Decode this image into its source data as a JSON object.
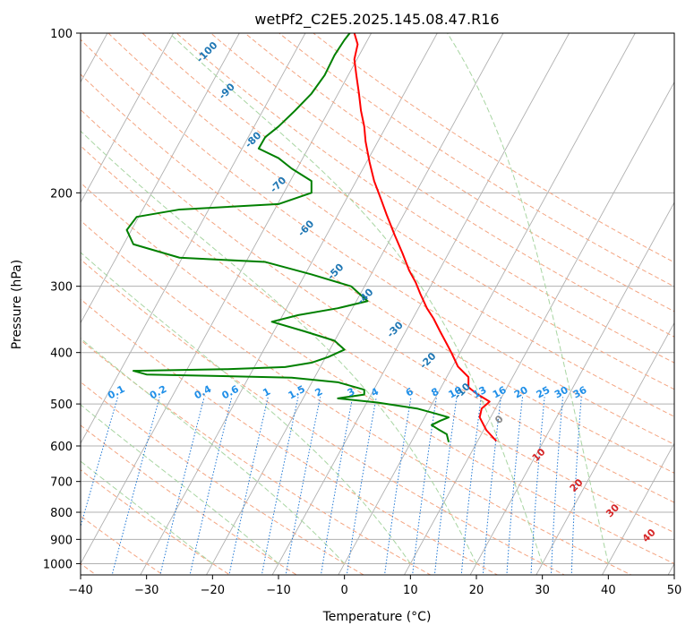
{
  "chart_data": {
    "type": "line",
    "title": "wetPf2_C2E5.2025.145.08.47.R16",
    "xlabel": "Temperature (°C)",
    "ylabel": "Pressure (hPa)",
    "xlim": [
      -40,
      50
    ],
    "ylim": [
      1050,
      100
    ],
    "y_scale": "log",
    "grid": true,
    "x_ticks": [
      -40,
      -30,
      -20,
      -10,
      0,
      10,
      20,
      30,
      40,
      50
    ],
    "x_tick_labels": [
      "−40",
      "−30",
      "−20",
      "−10",
      "0",
      "10",
      "20",
      "30",
      "40",
      "50"
    ],
    "y_ticks": [
      1000,
      900,
      800,
      700,
      600,
      500,
      400,
      300,
      200,
      100
    ],
    "y_tick_labels": [
      "1000",
      "900",
      "800",
      "700",
      "600",
      "500",
      "400",
      "300",
      "200",
      "100"
    ],
    "series": [
      {
        "color": "#ff0000",
        "points": [
          [
            23,
            587
          ],
          [
            21.5,
            560
          ],
          [
            20.5,
            530
          ],
          [
            20.8,
            510
          ],
          [
            22,
            495
          ],
          [
            20,
            478
          ],
          [
            18.8,
            465
          ],
          [
            18.8,
            445
          ],
          [
            17.2,
            425
          ],
          [
            16.2,
            400
          ],
          [
            15.5,
            385
          ],
          [
            14.5,
            365
          ],
          [
            13.5,
            345
          ],
          [
            12.5,
            330
          ],
          [
            11.5,
            310
          ],
          [
            10.8,
            295
          ],
          [
            9.8,
            280
          ],
          [
            8.8,
            260
          ],
          [
            7.6,
            240
          ],
          [
            6.4,
            220
          ],
          [
            5.5,
            205
          ],
          [
            4.5,
            190
          ],
          [
            3.8,
            175
          ],
          [
            3.2,
            160
          ],
          [
            3,
            150
          ],
          [
            2.5,
            140
          ],
          [
            2.2,
            130
          ],
          [
            1.8,
            120
          ],
          [
            1.5,
            112
          ],
          [
            2,
            105
          ],
          [
            1.5,
            100
          ]
        ]
      },
      {
        "color": "#008000",
        "points": [
          [
            15.8,
            590
          ],
          [
            15.5,
            570
          ],
          [
            14.2,
            558
          ],
          [
            13.2,
            548
          ],
          [
            14.5,
            538
          ],
          [
            15.8,
            530
          ],
          [
            13.5,
            520
          ],
          [
            11,
            510
          ],
          [
            5,
            497
          ],
          [
            -1,
            488
          ],
          [
            3,
            480
          ],
          [
            3,
            470
          ],
          [
            -1,
            455
          ],
          [
            -8,
            446
          ],
          [
            -30,
            440
          ],
          [
            -32,
            433
          ],
          [
            -18,
            430
          ],
          [
            -9,
            426
          ],
          [
            -5,
            418
          ],
          [
            -2.5,
            408
          ],
          [
            0,
            395
          ],
          [
            -1.5,
            380
          ],
          [
            -6,
            365
          ],
          [
            -11,
            350
          ],
          [
            -7,
            340
          ],
          [
            -1,
            330
          ],
          [
            3.5,
            320
          ],
          [
            1,
            300
          ],
          [
            -5,
            285
          ],
          [
            -12,
            270
          ],
          [
            -25,
            265
          ],
          [
            -32,
            250
          ],
          [
            -33,
            235
          ],
          [
            -31.5,
            222
          ],
          [
            -25,
            215
          ],
          [
            -10,
            210
          ],
          [
            -5,
            200
          ],
          [
            -5,
            190
          ],
          [
            -8,
            180
          ],
          [
            -10,
            172
          ],
          [
            -13,
            165
          ],
          [
            -12,
            157
          ],
          [
            -10,
            150
          ],
          [
            -7.5,
            140
          ],
          [
            -5,
            130
          ],
          [
            -3,
            120
          ],
          [
            -1.5,
            110
          ],
          [
            0,
            103
          ],
          [
            0.8,
            100
          ]
        ]
      }
    ],
    "dry_adiabats_K": [
      -70,
      -60,
      -50,
      -40,
      -30,
      -20,
      -10,
      0,
      10,
      20,
      30,
      40,
      50,
      60,
      70,
      80,
      90,
      100,
      110,
      120,
      130,
      140,
      150,
      160
    ],
    "moist_adiabats_C": [
      -20,
      -10,
      0,
      10,
      20,
      30,
      40
    ],
    "moist_adiabat_labels": [
      {
        "text": "0",
        "x": 23.8,
        "p": 532
      },
      {
        "text": "10",
        "x": 29.8,
        "p": 620
      },
      {
        "text": "20",
        "x": 35.5,
        "p": 708
      },
      {
        "text": "30",
        "x": 41,
        "p": 790
      },
      {
        "text": "40",
        "x": 46.5,
        "p": 880
      }
    ],
    "mixing_ratios": [
      0.1,
      0.2,
      0.4,
      0.6,
      1,
      1.5,
      2,
      3,
      4,
      6,
      8,
      10,
      13,
      16,
      20,
      25,
      30,
      36
    ],
    "mixing_ratio_labels": [
      "0.1",
      "0.2",
      "0.4",
      "0.6",
      "1",
      "1.5",
      "2",
      "3",
      "4",
      "6",
      "8",
      "10",
      "13",
      "16",
      "20",
      "25",
      "30",
      "36"
    ],
    "mixing_ratio_label_pressure": 485,
    "isotherm_labels": [
      {
        "text": "-100",
        "x": -20.5,
        "p": 108
      },
      {
        "text": "-90",
        "x": -17.5,
        "p": 128
      },
      {
        "text": "-80",
        "x": -13.5,
        "p": 158
      },
      {
        "text": "-70",
        "x": -9.7,
        "p": 192
      },
      {
        "text": "-60",
        "x": -5.5,
        "p": 232
      },
      {
        "text": "-50",
        "x": -1,
        "p": 280
      },
      {
        "text": "-40",
        "x": 3.5,
        "p": 312
      },
      {
        "text": "-30",
        "x": 8,
        "p": 360
      },
      {
        "text": "-20",
        "x": 13,
        "p": 412
      },
      {
        "text": "-10",
        "x": 18.2,
        "p": 470
      }
    ],
    "colors": {
      "temperature": "#ff0000",
      "dewpoint": "#008000",
      "dry_adiabat": "#f4a582",
      "moist_adiabat": "#a8d5a2",
      "mixing_ratio": "#1f77d4",
      "isotherm": "#b0b0b0",
      "isotherm_label": "#1f77b4",
      "moist_label": "#d62728",
      "grid": "#b0b0b0"
    }
  }
}
